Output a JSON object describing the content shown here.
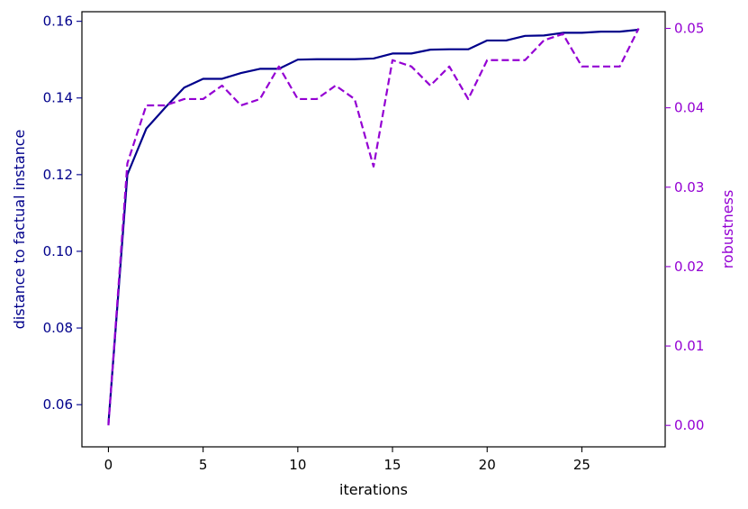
{
  "chart_data": {
    "type": "line",
    "xlabel": "iterations",
    "ylabel_left": "distance to factual instance",
    "ylabel_right": "robustness",
    "xlim": [
      -1.4,
      29.4
    ],
    "ylim_left": [
      0.049,
      0.1625
    ],
    "ylim_right": [
      -0.0027,
      0.0521
    ],
    "x_ticks": [
      0,
      5,
      10,
      15,
      20,
      25
    ],
    "y_left_ticks": [
      0.06,
      0.08,
      0.1,
      0.12,
      0.14,
      0.16
    ],
    "y_left_tick_labels": [
      "0.06",
      "0.08",
      "0.10",
      "0.12",
      "0.14",
      "0.16"
    ],
    "y_right_ticks": [
      0.0,
      0.01,
      0.02,
      0.03,
      0.04,
      0.05
    ],
    "y_right_tick_labels": [
      "0.00",
      "0.01",
      "0.02",
      "0.03",
      "0.04",
      "0.05"
    ],
    "grid": false,
    "x": [
      0,
      1,
      2,
      3,
      4,
      5,
      6,
      7,
      8,
      9,
      10,
      11,
      12,
      13,
      14,
      15,
      16,
      17,
      18,
      19,
      20,
      21,
      22,
      23,
      24,
      25,
      26,
      27,
      28
    ],
    "series": [
      {
        "axis": "left",
        "style": "solid",
        "color": "#00008b",
        "values": [
          0.055,
          0.12,
          0.132,
          0.1375,
          0.1427,
          0.145,
          0.145,
          0.1465,
          0.1476,
          0.1476,
          0.15,
          0.1501,
          0.1501,
          0.1501,
          0.1503,
          0.1516,
          0.1516,
          0.1526,
          0.1527,
          0.1527,
          0.155,
          0.155,
          0.1562,
          0.1563,
          0.157,
          0.157,
          0.1573,
          0.1573,
          0.1578
        ]
      },
      {
        "axis": "right",
        "style": "dashed",
        "color": "#9400d3",
        "values": [
          0.0,
          0.033,
          0.0403,
          0.0403,
          0.0411,
          0.0411,
          0.0428,
          0.0403,
          0.0411,
          0.0452,
          0.0411,
          0.0411,
          0.0428,
          0.0411,
          0.0326,
          0.046,
          0.0452,
          0.0428,
          0.0452,
          0.0411,
          0.046,
          0.046,
          0.046,
          0.0485,
          0.0493,
          0.0452,
          0.0452,
          0.0452,
          0.05
        ]
      }
    ]
  },
  "colors": {
    "left_axis": "#00008b",
    "right_axis": "#9400d3",
    "frame": "#000000"
  }
}
